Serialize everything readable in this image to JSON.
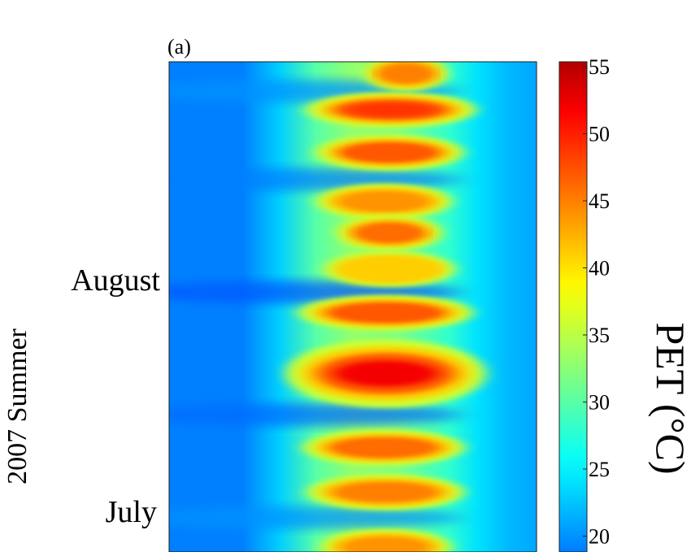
{
  "chart_data": {
    "type": "heatmap",
    "panel_label": "(a)",
    "ylabel": "2007 Summer",
    "y_tick_labels": [
      "August",
      "July"
    ],
    "colorbar": {
      "label": "PET (°C)",
      "min": 18,
      "max": 55,
      "ticks": [
        20,
        25,
        30,
        35,
        40,
        45,
        50,
        55
      ],
      "colormap": "jet"
    },
    "x_range": [
      0,
      1
    ],
    "hot_bands": [
      {
        "y": 0.976,
        "x_start": 0.55,
        "x_end": 0.74,
        "value": 45
      },
      {
        "y": 0.902,
        "x_start": 0.41,
        "x_end": 0.8,
        "value": 49
      },
      {
        "y": 0.815,
        "x_start": 0.43,
        "x_end": 0.77,
        "value": 47
      },
      {
        "y": 0.715,
        "x_start": 0.43,
        "x_end": 0.74,
        "value": 44
      },
      {
        "y": 0.651,
        "x_start": 0.48,
        "x_end": 0.72,
        "value": 46
      },
      {
        "y": 0.577,
        "x_start": 0.45,
        "x_end": 0.75,
        "value": 41
      },
      {
        "y": 0.488,
        "x_start": 0.39,
        "x_end": 0.79,
        "value": 47
      },
      {
        "y": 0.364,
        "x_start": 0.36,
        "x_end": 0.82,
        "value": 52
      },
      {
        "y": 0.213,
        "x_start": 0.4,
        "x_end": 0.77,
        "value": 46
      },
      {
        "y": 0.122,
        "x_start": 0.41,
        "x_end": 0.77,
        "value": 45
      },
      {
        "y": 0.01,
        "x_start": 0.44,
        "x_end": 0.74,
        "value": 44
      }
    ],
    "cool_bands": [
      {
        "y": 0.94,
        "value": 20
      },
      {
        "y": 0.76,
        "value": 19
      },
      {
        "y": 0.53,
        "value": 17
      },
      {
        "y": 0.28,
        "value": 18
      },
      {
        "y": 0.07,
        "value": 20
      }
    ]
  }
}
